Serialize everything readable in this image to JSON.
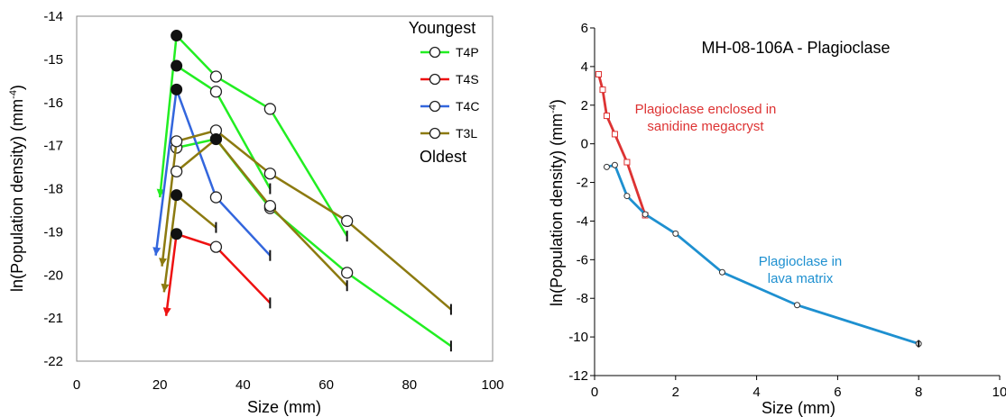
{
  "chart_data": [
    {
      "type": "line",
      "xlabel": "Size (mm)",
      "ylabel_main": "ln(Population density) (mm",
      "ylabel_sup": "-4",
      "ylabel_close": ")",
      "xlim": [
        0,
        100
      ],
      "ylim": [
        -22,
        -14
      ],
      "xticks": [
        "0",
        "20",
        "40",
        "60",
        "80",
        "100"
      ],
      "yticks": [
        "-14",
        "-15",
        "-16",
        "-17",
        "-18",
        "-19",
        "-20",
        "-21",
        "-22"
      ],
      "legend": {
        "top_text": "Youngest",
        "bottom_text": "Oldest",
        "entries": [
          {
            "name": "T4P",
            "color": "#22ee22"
          },
          {
            "name": "T4S",
            "color": "#ee1111"
          },
          {
            "name": "T4C",
            "color": "#3366dd"
          },
          {
            "name": "T3L",
            "color": "#8c7a10"
          }
        ]
      },
      "series": [
        {
          "legend": "T4P",
          "color": "#22ee22",
          "points": [
            [
              20,
              -18.2
            ],
            [
              24,
              -14.45
            ],
            [
              33.5,
              -15.4
            ],
            [
              46.5,
              -16.15
            ],
            [
              65,
              -19.1
            ]
          ],
          "markers": [
            "none",
            "filled",
            "open",
            "open",
            "tick"
          ]
        },
        {
          "legend": "T4P",
          "color": "#22ee22",
          "points": [
            [
              24,
              -15.15
            ],
            [
              33.5,
              -15.75
            ],
            [
              46.5,
              -18.0
            ]
          ],
          "markers": [
            "filled",
            "open",
            "tick"
          ]
        },
        {
          "legend": "T4P",
          "color": "#22ee22",
          "points": [
            [
              24,
              -17.05
            ],
            [
              33.5,
              -16.85
            ],
            [
              46.5,
              -18.45
            ],
            [
              65,
              -19.95
            ],
            [
              90,
              -21.65
            ]
          ],
          "markers": [
            "open",
            "open",
            "open",
            "open",
            "tick"
          ]
        },
        {
          "legend": "T4C",
          "color": "#3366dd",
          "points": [
            [
              19,
              -19.55
            ],
            [
              24,
              -15.7
            ],
            [
              33.5,
              -18.2
            ],
            [
              46.5,
              -19.55
            ]
          ],
          "markers": [
            "none",
            "filled",
            "open",
            "tick"
          ]
        },
        {
          "legend": "T3L",
          "color": "#8c7a10",
          "points": [
            [
              20.5,
              -19.8
            ],
            [
              24,
              -16.9
            ],
            [
              33.5,
              -16.65
            ],
            [
              46.5,
              -17.65
            ],
            [
              65,
              -18.75
            ],
            [
              90,
              -20.8
            ]
          ],
          "markers": [
            "none",
            "open",
            "open",
            "open",
            "open",
            "tick"
          ]
        },
        {
          "legend": "T3L",
          "color": "#8c7a10",
          "points": [
            [
              24,
              -17.6
            ],
            [
              33.5,
              -16.85
            ],
            [
              46.5,
              -18.4
            ],
            [
              65,
              -20.25
            ]
          ],
          "markers": [
            "open",
            "filled",
            "open",
            "tick"
          ]
        },
        {
          "legend": "T3L",
          "color": "#8c7a10",
          "points": [
            [
              21,
              -20.4
            ],
            [
              24,
              -18.15
            ],
            [
              33.5,
              -18.9
            ]
          ],
          "markers": [
            "none",
            "filled",
            "tick"
          ]
        },
        {
          "legend": "T4S",
          "color": "#ee1111",
          "points": [
            [
              21.5,
              -20.95
            ],
            [
              24,
              -19.05
            ],
            [
              33.5,
              -19.35
            ],
            [
              46.5,
              -20.65
            ]
          ],
          "markers": [
            "none",
            "filled",
            "open",
            "tick"
          ]
        }
      ]
    },
    {
      "type": "line",
      "title": "MH-08-106A - Plagioclase",
      "xlabel": "Size (mm)",
      "ylabel_main": "ln(Population density) (mm",
      "ylabel_sup": "-4",
      "ylabel_close": ")",
      "xlim": [
        0,
        10
      ],
      "ylim": [
        -12,
        6
      ],
      "xticks": [
        "0",
        "2",
        "4",
        "6",
        "8",
        "10"
      ],
      "yticks": [
        "6",
        "4",
        "2",
        "0",
        "-2",
        "-4",
        "-6",
        "-8",
        "-10",
        "-12"
      ],
      "series": [
        {
          "label": "Plagioclase enclosed in sanidine megacryst",
          "label_lines": [
            "Plagioclase enclosed in",
            "sanidine megacryst"
          ],
          "color": "#dd3333",
          "marker": "square",
          "x": [
            0.1,
            0.2,
            0.3,
            0.5,
            0.8,
            1.25
          ],
          "y": [
            3.6,
            2.8,
            1.45,
            0.5,
            -0.95,
            -3.7
          ]
        },
        {
          "label": "Plagioclase in lava matrix",
          "label_lines": [
            "Plagioclase in",
            "lava matrix"
          ],
          "color": "#1e90d0",
          "marker": "circle",
          "x": [
            0.3,
            0.5,
            0.8,
            1.25,
            2.0,
            3.15,
            5.0,
            8.0
          ],
          "y": [
            -1.2,
            -1.1,
            -2.7,
            -3.65,
            -4.65,
            -6.65,
            -8.35,
            -10.35
          ]
        }
      ]
    }
  ]
}
